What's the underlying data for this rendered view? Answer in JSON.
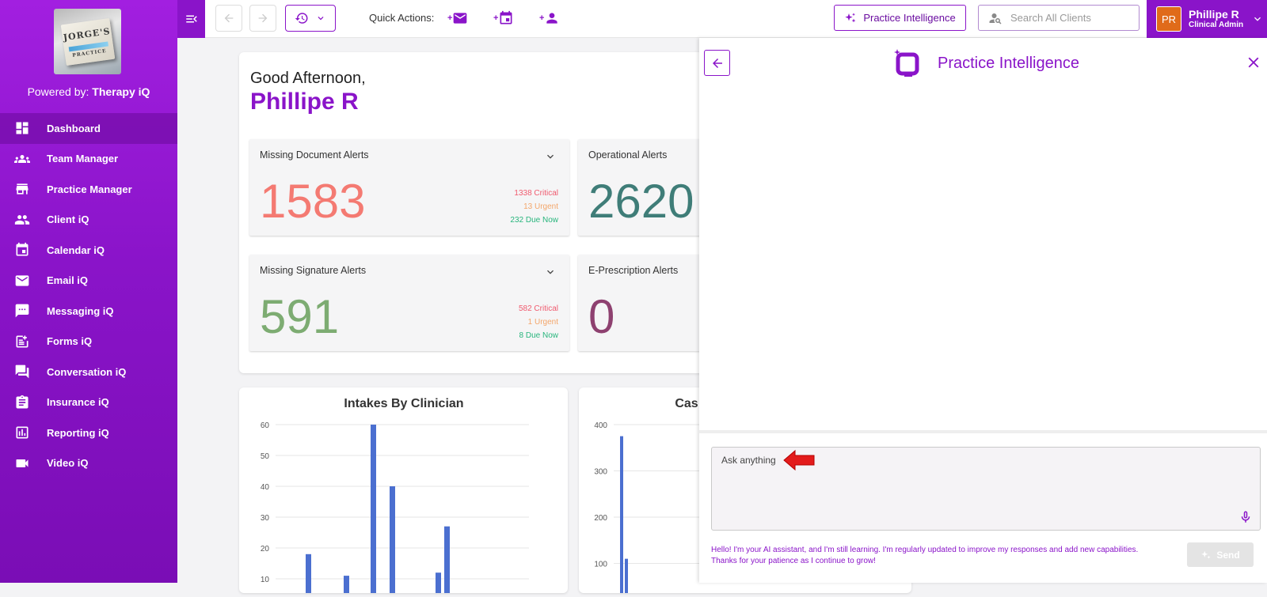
{
  "sidebar": {
    "logo_text": "JORGE'S",
    "logo_subtext": "PRACTICE",
    "powered_prefix": "Powered by:",
    "powered_brand": "Therapy iQ",
    "items": [
      {
        "label": "Dashboard",
        "icon": "dashboard-icon",
        "active": true
      },
      {
        "label": "Team Manager",
        "icon": "team-icon"
      },
      {
        "label": "Practice Manager",
        "icon": "store-icon"
      },
      {
        "label": "Client iQ",
        "icon": "people-icon"
      },
      {
        "label": "Calendar iQ",
        "icon": "calendar-icon"
      },
      {
        "label": "Email iQ",
        "icon": "mail-icon"
      },
      {
        "label": "Messaging iQ",
        "icon": "message-icon"
      },
      {
        "label": "Forms iQ",
        "icon": "forms-icon"
      },
      {
        "label": "Conversation iQ",
        "icon": "chat-icon"
      },
      {
        "label": "Insurance iQ",
        "icon": "clipboard-icon"
      },
      {
        "label": "Reporting iQ",
        "icon": "report-icon"
      },
      {
        "label": "Video iQ",
        "icon": "video-icon"
      }
    ]
  },
  "topbar": {
    "quick_actions_label": "Quick Actions:",
    "pi_button_label": "Practice Intelligence",
    "search_placeholder": "Search All Clients",
    "user": {
      "initials": "PR",
      "name": "Phillipe R",
      "role": "Clinical Admin"
    }
  },
  "dashboard": {
    "greeting": "Good Afternoon,",
    "name": "Phillipe R",
    "alerts": [
      {
        "title": "Missing Document Alerts",
        "value": "1583",
        "color": "#f47a72",
        "stats": [
          "1338 Critical",
          "13 Urgent",
          "232 Due Now"
        ]
      },
      {
        "title": "Operational Alerts",
        "value": "2620",
        "color": "#3f7d78"
      },
      {
        "title": "Missing Signature Alerts",
        "value": "591",
        "color": "#7dac72",
        "stats": [
          "582 Critical",
          "1 Urgent",
          "8 Due Now"
        ]
      },
      {
        "title": "E-Prescription Alerts",
        "value": "0",
        "color": "#8e4170"
      }
    ],
    "status_colors": {
      "critical": "#f05a6e",
      "urgent": "#f4a66a",
      "due": "#27b57c"
    }
  },
  "chart_data": [
    {
      "type": "bar",
      "title": "Intakes By Clinician",
      "ylim": [
        0,
        60
      ],
      "yticks": [
        "60",
        "50",
        "40",
        "30",
        "20",
        "10"
      ],
      "values": [
        0,
        18,
        0,
        11,
        60,
        40,
        0,
        12,
        27,
        0
      ]
    },
    {
      "type": "bar",
      "title": "Cas",
      "ylim": [
        0,
        400
      ],
      "yticks": [
        "400",
        "300",
        "200",
        "100"
      ],
      "values": [
        375,
        110
      ]
    }
  ],
  "panel": {
    "title": "Practice Intelligence",
    "input_placeholder": "Ask anything",
    "disclaimer": "Hello! I'm your AI assistant, and I'm still learning. I'm regularly updated to improve my responses and add new capabilities. Thanks for your patience as I continue to grow!",
    "send_label": "Send"
  }
}
